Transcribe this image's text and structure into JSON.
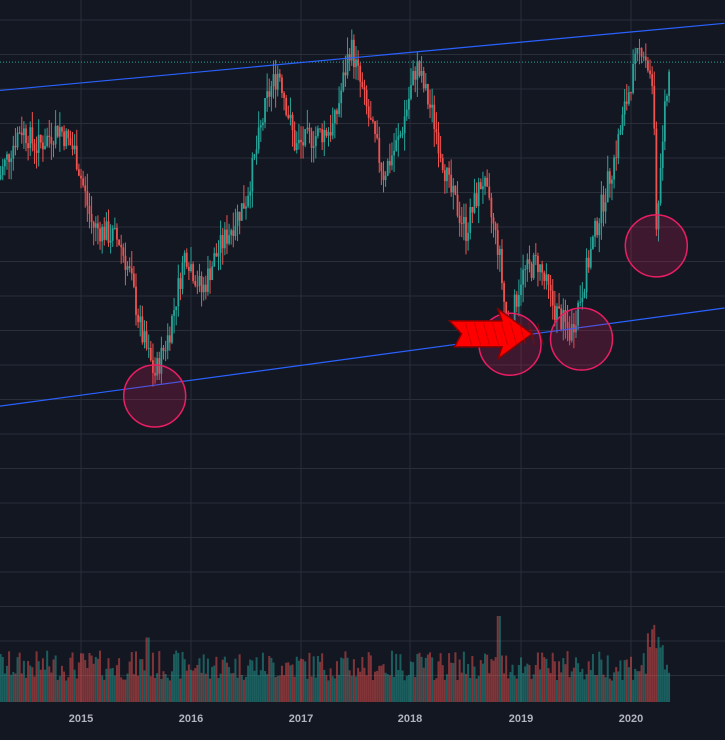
{
  "colors": {
    "background": "#131722",
    "grid": "#2a2e39",
    "up": "#26a69a",
    "down": "#ef5350",
    "trendline": "#2962ff",
    "price_line": "#26a69a",
    "circle": "#e91e63",
    "arrow": "#ff0000"
  },
  "chart_data": {
    "type": "candlestick",
    "title": "",
    "xlabel": "",
    "ylabel": "",
    "x_tick_labels": [
      "2015",
      "2016",
      "2017",
      "2018",
      "2019",
      "2020"
    ],
    "y_axis_range_unlabeled": [
      0,
      1
    ],
    "grid": true,
    "close_series": [
      {
        "t": 2014.25,
        "v": 0.74
      },
      {
        "t": 2014.45,
        "v": 0.84
      },
      {
        "t": 2014.6,
        "v": 0.8
      },
      {
        "t": 2014.8,
        "v": 0.84
      },
      {
        "t": 2014.95,
        "v": 0.79
      },
      {
        "t": 2015.1,
        "v": 0.65
      },
      {
        "t": 2015.35,
        "v": 0.62
      },
      {
        "t": 2015.45,
        "v": 0.55
      },
      {
        "t": 2015.55,
        "v": 0.44
      },
      {
        "t": 2015.67,
        "v": 0.36
      },
      {
        "t": 2015.8,
        "v": 0.44
      },
      {
        "t": 2015.95,
        "v": 0.6
      },
      {
        "t": 2016.1,
        "v": 0.52
      },
      {
        "t": 2016.2,
        "v": 0.58
      },
      {
        "t": 2016.5,
        "v": 0.7
      },
      {
        "t": 2016.7,
        "v": 0.9
      },
      {
        "t": 2016.8,
        "v": 0.95
      },
      {
        "t": 2016.95,
        "v": 0.8
      },
      {
        "t": 2017.1,
        "v": 0.82
      },
      {
        "t": 2017.3,
        "v": 0.84
      },
      {
        "t": 2017.45,
        "v": 1.0
      },
      {
        "t": 2017.6,
        "v": 0.87
      },
      {
        "t": 2017.75,
        "v": 0.75
      },
      {
        "t": 2017.9,
        "v": 0.82
      },
      {
        "t": 2018.05,
        "v": 0.96
      },
      {
        "t": 2018.2,
        "v": 0.86
      },
      {
        "t": 2018.35,
        "v": 0.72
      },
      {
        "t": 2018.5,
        "v": 0.64
      },
      {
        "t": 2018.65,
        "v": 0.74
      },
      {
        "t": 2018.8,
        "v": 0.6
      },
      {
        "t": 2018.88,
        "v": 0.43
      },
      {
        "t": 2019.0,
        "v": 0.55
      },
      {
        "t": 2019.15,
        "v": 0.58
      },
      {
        "t": 2019.3,
        "v": 0.49
      },
      {
        "t": 2019.45,
        "v": 0.44
      },
      {
        "t": 2019.55,
        "v": 0.52
      },
      {
        "t": 2019.7,
        "v": 0.66
      },
      {
        "t": 2019.85,
        "v": 0.78
      },
      {
        "t": 2020.0,
        "v": 0.93
      },
      {
        "t": 2020.1,
        "v": 1.0
      },
      {
        "t": 2020.2,
        "v": 0.92
      },
      {
        "t": 2020.23,
        "v": 0.64
      },
      {
        "t": 2020.3,
        "v": 0.85
      },
      {
        "t": 2020.35,
        "v": 0.95
      }
    ],
    "trendlines": [
      {
        "name": "",
        "t0": 2014.25,
        "v0": 0.91,
        "t1": 2020.85,
        "v1": 1.04
      },
      {
        "name": "",
        "t0": 2014.25,
        "v0": 0.3,
        "t1": 2020.85,
        "v1": 0.49
      }
    ],
    "price_line_level": 0.965,
    "highlight_circles": [
      {
        "t": 2015.67,
        "v": 0.32
      },
      {
        "t": 2018.9,
        "v": 0.42
      },
      {
        "t": 2019.55,
        "v": 0.43
      },
      {
        "t": 2020.23,
        "v": 0.61
      }
    ],
    "arrow_annotation": {
      "from_t": 2018.35,
      "to_t": 2019.1,
      "v": 0.44
    },
    "volume_note": "relative volume bars colored by candle direction, peak near 2018.8"
  }
}
